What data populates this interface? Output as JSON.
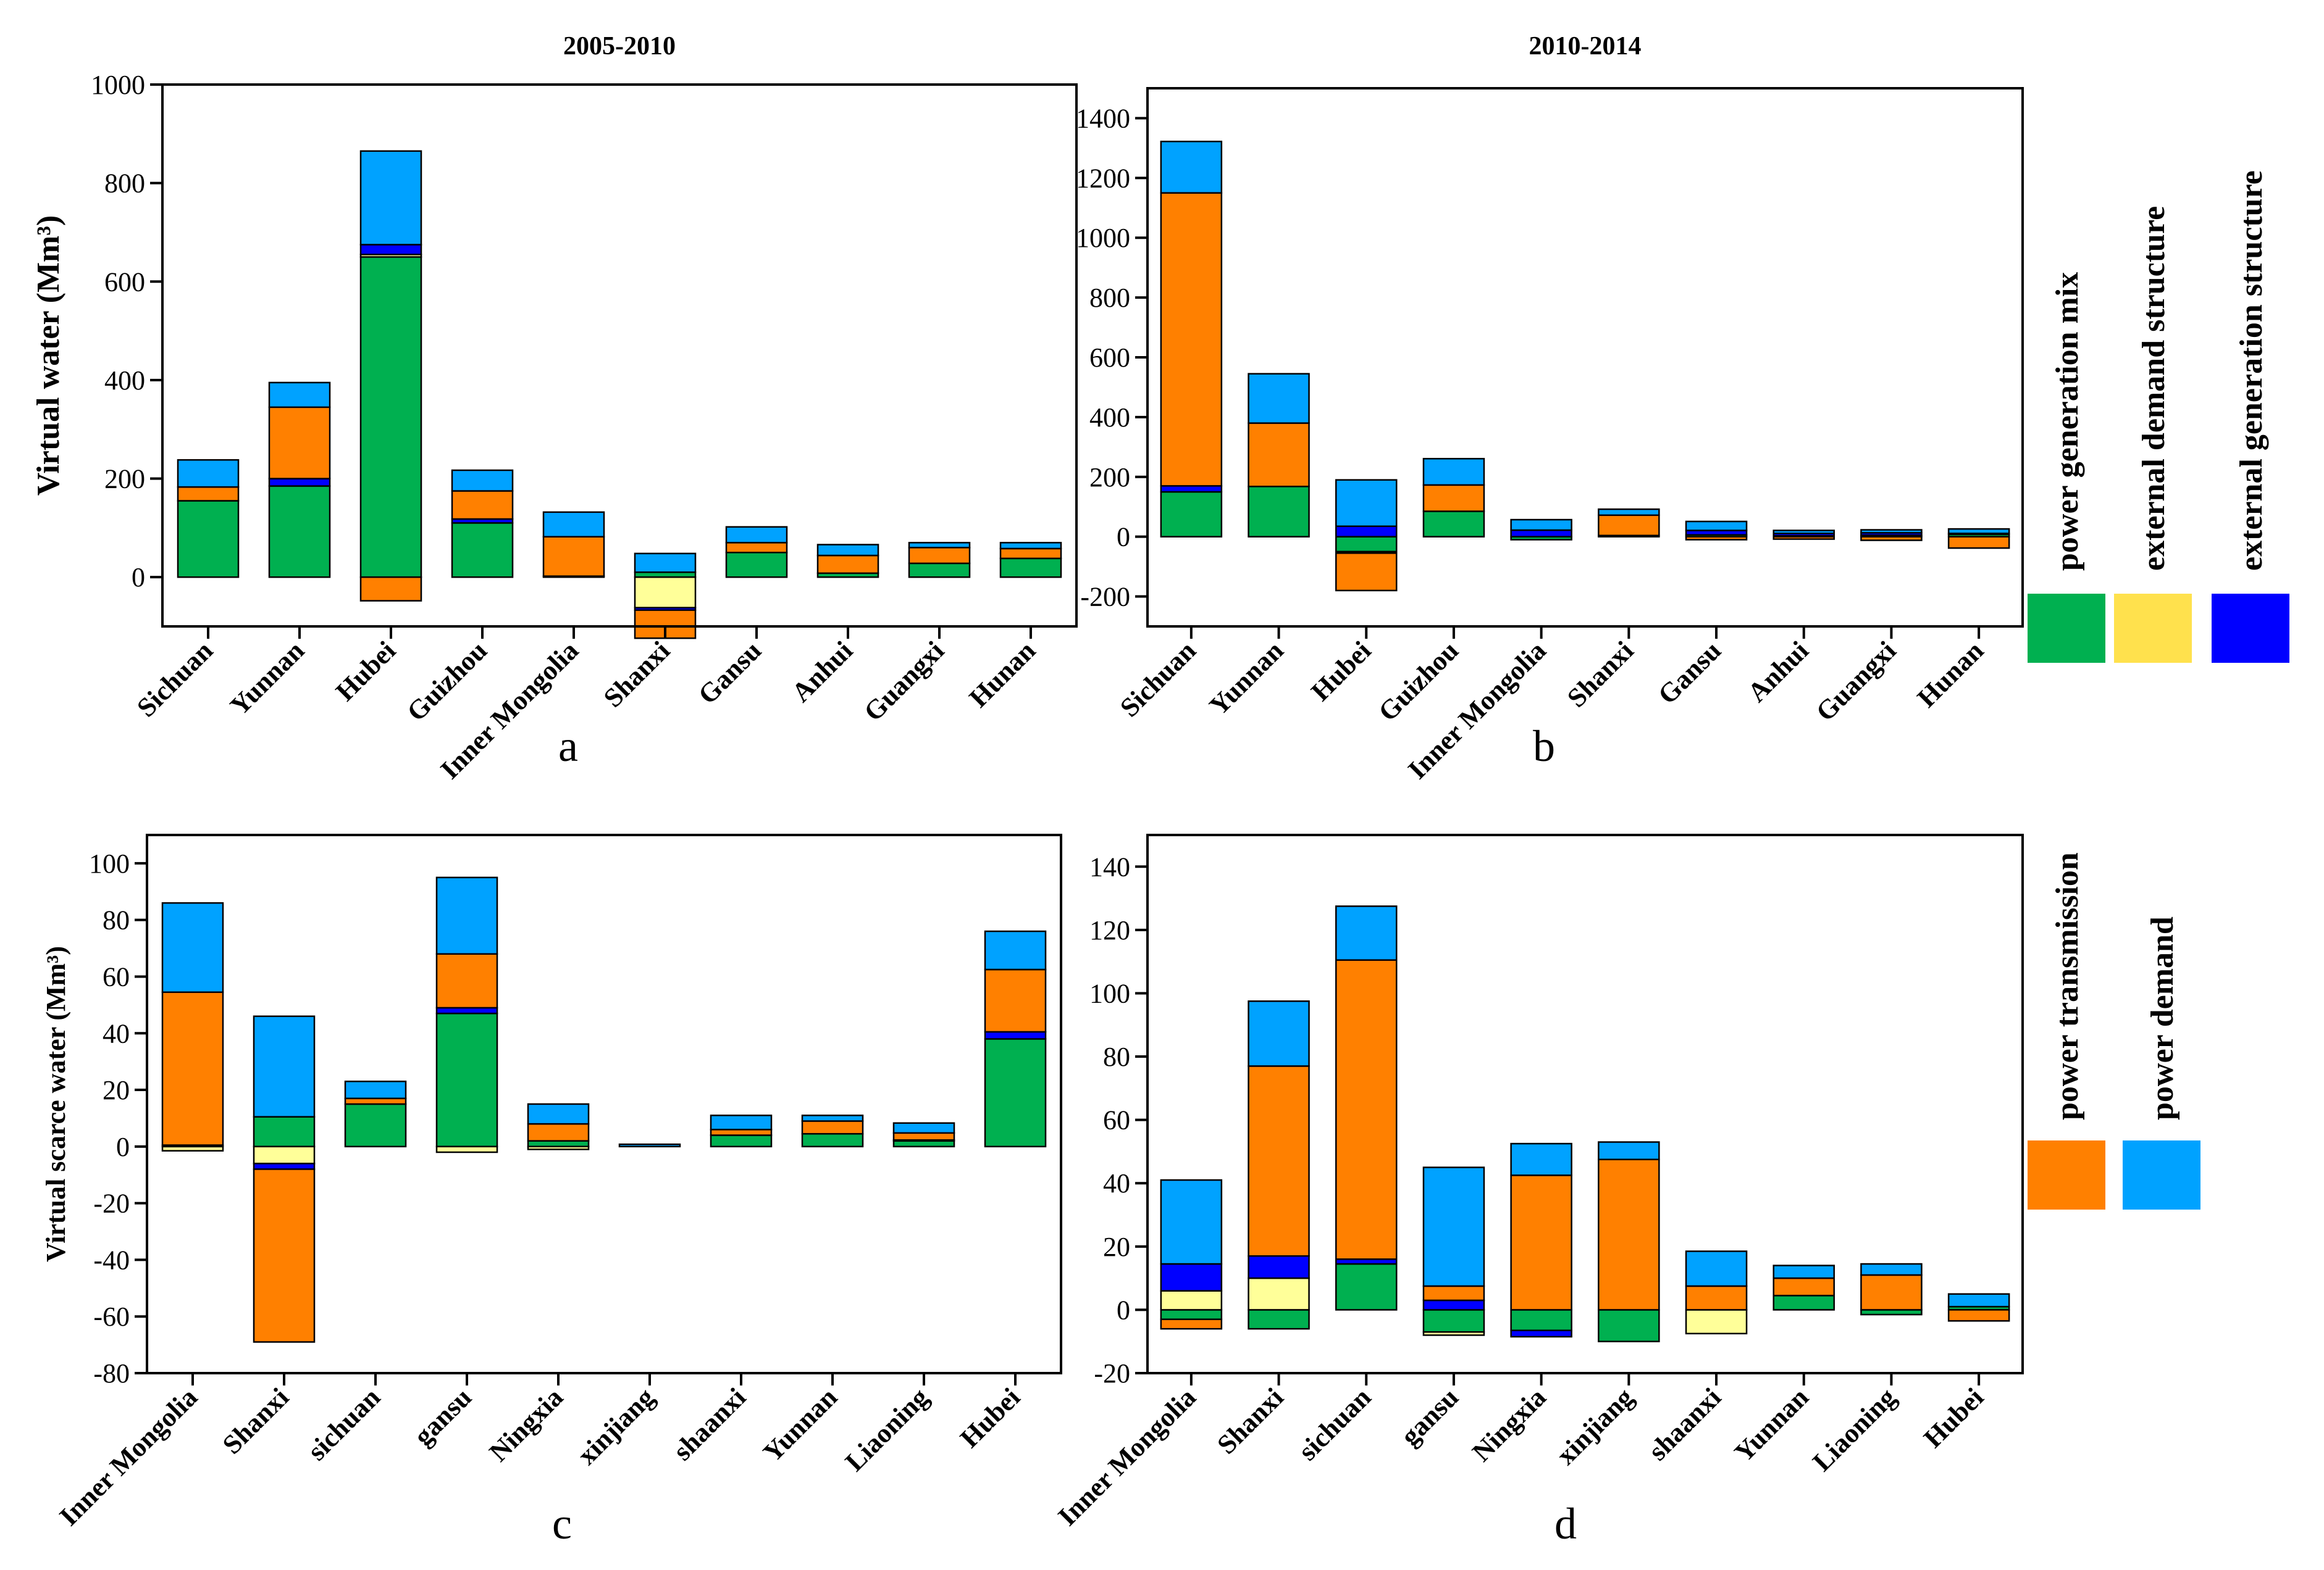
{
  "colors": {
    "power_generation_mix": "#00B050",
    "external_demand_structure": "#FFFF99",
    "external_generation_structure": "#0000FF",
    "power_transmission": "#FF8000",
    "power_demand": "#00A2FF"
  },
  "legend": {
    "top": [
      {
        "label": "power generation mix",
        "color": "#00B050"
      },
      {
        "label": "external demand structure",
        "color": "#FFE14D"
      },
      {
        "label": "external generation structure",
        "color": "#0000FF"
      }
    ],
    "bottom": [
      {
        "label": "power transmission",
        "color": "#FF8000"
      },
      {
        "label": "power demand",
        "color": "#00A2FF"
      }
    ]
  },
  "chart_data": [
    {
      "id": "a",
      "type": "bar",
      "stacked": true,
      "title": "2005-2010",
      "panel_label": "a",
      "ylabel": "Virtual water (Mm³)",
      "ylim": [
        -100,
        1000
      ],
      "yticks": [
        0,
        200,
        400,
        600,
        800,
        1000
      ],
      "categories": [
        "Sichuan",
        "Yunnan",
        "Hubei",
        "Guizhou",
        "Inner Mongolia",
        "Shanxi",
        "Gansu",
        "Anhui",
        "Guangxi",
        "Hunan"
      ],
      "series": [
        {
          "name": "power generation mix",
          "values": [
            155,
            185,
            650,
            110,
            2,
            10,
            50,
            8,
            28,
            38
          ]
        },
        {
          "name": "external demand structure",
          "values": [
            0,
            0,
            5,
            0,
            0,
            -62,
            0,
            0,
            0,
            0
          ]
        },
        {
          "name": "external generation structure",
          "values": [
            0,
            15,
            20,
            8,
            0,
            -5,
            0,
            0,
            0,
            0
          ]
        },
        {
          "name": "power transmission",
          "values": [
            28,
            145,
            -48,
            57,
            80,
            -57,
            20,
            36,
            32,
            20
          ]
        },
        {
          "name": "power demand",
          "values": [
            55,
            50,
            190,
            42,
            50,
            38,
            32,
            22,
            10,
            12
          ]
        }
      ]
    },
    {
      "id": "b",
      "type": "bar",
      "stacked": true,
      "title": "2010-2014",
      "panel_label": "b",
      "ylabel": "",
      "ylim": [
        -300,
        1500
      ],
      "yticks": [
        -200,
        0,
        200,
        400,
        600,
        800,
        1000,
        1200,
        1400
      ],
      "categories": [
        "Sichuan",
        "Yunnan",
        "Hubei",
        "Guizhou",
        "Inner Mongolia",
        "Shanxi",
        "Gansu",
        "Anhui",
        "Guangxi",
        "Hunan"
      ],
      "series": [
        {
          "name": "power generation mix",
          "values": [
            150,
            168,
            -50,
            85,
            -10,
            4,
            6,
            3,
            5,
            8
          ]
        },
        {
          "name": "external demand structure",
          "values": [
            0,
            0,
            -5,
            0,
            0,
            0,
            0,
            0,
            0,
            0
          ]
        },
        {
          "name": "external generation structure",
          "values": [
            20,
            0,
            35,
            0,
            22,
            0,
            15,
            8,
            8,
            3
          ]
        },
        {
          "name": "power transmission",
          "values": [
            980,
            212,
            -125,
            88,
            0,
            68,
            -10,
            -8,
            -12,
            -38
          ]
        },
        {
          "name": "power demand",
          "values": [
            172,
            165,
            155,
            88,
            35,
            20,
            30,
            10,
            10,
            15
          ]
        }
      ]
    },
    {
      "id": "c",
      "type": "bar",
      "stacked": true,
      "title": "",
      "panel_label": "c",
      "ylabel": "Virtual scarce water (Mm³)",
      "ylim": [
        -80,
        110
      ],
      "yticks": [
        -80,
        -60,
        -40,
        -20,
        0,
        20,
        40,
        60,
        80,
        100
      ],
      "categories": [
        "Inner Mongolia",
        "Shanxi",
        "sichuan",
        "gansu",
        "Ningxia",
        "xinjiang",
        "shaanxi",
        "Yunnan",
        "Liaoning",
        "Hubei"
      ],
      "series": [
        {
          "name": "power generation mix",
          "values": [
            0,
            10.5,
            15,
            47,
            2,
            0,
            4,
            4.5,
            2,
            38
          ]
        },
        {
          "name": "external demand structure",
          "values": [
            -1.5,
            -6,
            0,
            -2,
            -1,
            0,
            0,
            0,
            0,
            0
          ]
        },
        {
          "name": "external generation structure",
          "values": [
            0.5,
            -2,
            0,
            2,
            0,
            0,
            0,
            0,
            0.3,
            2.5
          ]
        },
        {
          "name": "power transmission",
          "values": [
            54,
            -61,
            2,
            19,
            6,
            0,
            2,
            4.5,
            2.5,
            22
          ]
        },
        {
          "name": "power demand",
          "values": [
            31.5,
            35.5,
            6,
            27,
            7,
            0.8,
            5,
            2,
            3.5,
            13.5
          ]
        }
      ]
    },
    {
      "id": "d",
      "type": "bar",
      "stacked": true,
      "title": "",
      "panel_label": "d",
      "ylabel": "",
      "ylim": [
        -20,
        150
      ],
      "yticks": [
        -20,
        0,
        20,
        40,
        60,
        80,
        100,
        120,
        140
      ],
      "categories": [
        "Inner Mongolia",
        "Shanxi",
        "sichuan",
        "gansu",
        "Ningxia",
        "xinjiang",
        "shaanxi",
        "Yunnan",
        "Liaoning",
        "Hubei"
      ],
      "series": [
        {
          "name": "power generation mix",
          "values": [
            -3,
            -6,
            14.5,
            -7,
            -6.5,
            -10,
            0,
            4.5,
            -1.5,
            1
          ]
        },
        {
          "name": "external demand structure",
          "values": [
            6,
            10,
            0,
            -1,
            0,
            0,
            -7.5,
            0,
            0,
            0
          ]
        },
        {
          "name": "external generation structure",
          "values": [
            8.5,
            7,
            1.5,
            3,
            -2,
            0,
            0,
            0,
            0,
            0
          ]
        },
        {
          "name": "power transmission",
          "values": [
            -3,
            60,
            94.5,
            4.5,
            42.5,
            47.5,
            7.5,
            5.5,
            11,
            -3.5
          ]
        },
        {
          "name": "power demand",
          "values": [
            26.5,
            20.5,
            17,
            37.5,
            10,
            5.5,
            11,
            4,
            3.5,
            4
          ]
        }
      ]
    }
  ]
}
